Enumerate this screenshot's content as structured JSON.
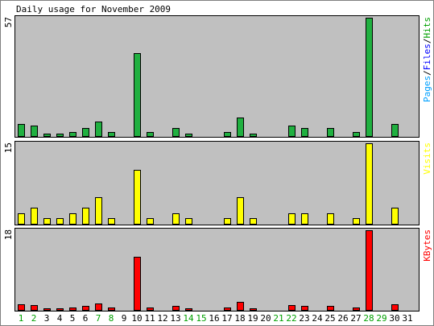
{
  "chart_data": {
    "type": "bar",
    "title": "Daily usage for November 2009",
    "categories": [
      "1",
      "2",
      "3",
      "4",
      "5",
      "6",
      "7",
      "8",
      "9",
      "10",
      "11",
      "12",
      "13",
      "14",
      "15",
      "16",
      "17",
      "18",
      "19",
      "20",
      "21",
      "22",
      "23",
      "24",
      "25",
      "26",
      "27",
      "28",
      "29",
      "30",
      "31"
    ],
    "weekend_days": [
      1,
      2,
      7,
      8,
      14,
      15,
      21,
      22,
      28,
      29
    ],
    "weekday_color": "#000000",
    "weekend_color": "#00a000",
    "background": "#c0c0c0",
    "grid": false,
    "panels": [
      {
        "id": "hits",
        "ymax_label": "57",
        "ylim": [
          0,
          57
        ],
        "legend_parts": [
          {
            "text": "Pages",
            "color": "#00a0ff"
          },
          {
            "text": "/",
            "color": "#000000"
          },
          {
            "text": "Files",
            "color": "#0000ff"
          },
          {
            "text": "/",
            "color": "#000000"
          },
          {
            "text": "Hits",
            "color": "#00a000"
          }
        ],
        "series": [
          {
            "name": "Hits",
            "color": "#20b040",
            "values": [
              6,
              5,
              1,
              1,
              2,
              4,
              7,
              2,
              0,
              40,
              2,
              0,
              4,
              1,
              0,
              0,
              2,
              9,
              1,
              0,
              0,
              5,
              4,
              0,
              4,
              0,
              2,
              57,
              0,
              6,
              0
            ]
          }
        ]
      },
      {
        "id": "visits",
        "ymax_label": "15",
        "ylim": [
          0,
          15
        ],
        "legend_parts": [
          {
            "text": "Visits",
            "color": "#ffff00"
          }
        ],
        "series": [
          {
            "name": "Visits",
            "color": "#ffff00",
            "values": [
              2,
              3,
              1,
              1,
              2,
              3,
              5,
              1,
              0,
              10,
              1,
              0,
              2,
              1,
              0,
              0,
              1,
              5,
              1,
              0,
              0,
              2,
              2,
              0,
              2,
              0,
              1,
              15,
              0,
              3,
              0
            ]
          }
        ]
      },
      {
        "id": "kbytes",
        "ymax_label": "18",
        "ylim": [
          0,
          18
        ],
        "legend_parts": [
          {
            "text": "KBytes",
            "color": "#ff0000"
          }
        ],
        "series": [
          {
            "name": "KBytes",
            "color": "#ff0000",
            "values": [
              1.2,
              1.1,
              0.3,
              0.3,
              0.5,
              0.9,
              1.5,
              0.5,
              0,
              12,
              0.5,
              0,
              0.9,
              0.3,
              0,
              0,
              0.5,
              1.9,
              0.3,
              0,
              0,
              1.1,
              0.9,
              0,
              0.9,
              0,
              0.5,
              18,
              0,
              1.2,
              0
            ]
          }
        ]
      }
    ]
  }
}
